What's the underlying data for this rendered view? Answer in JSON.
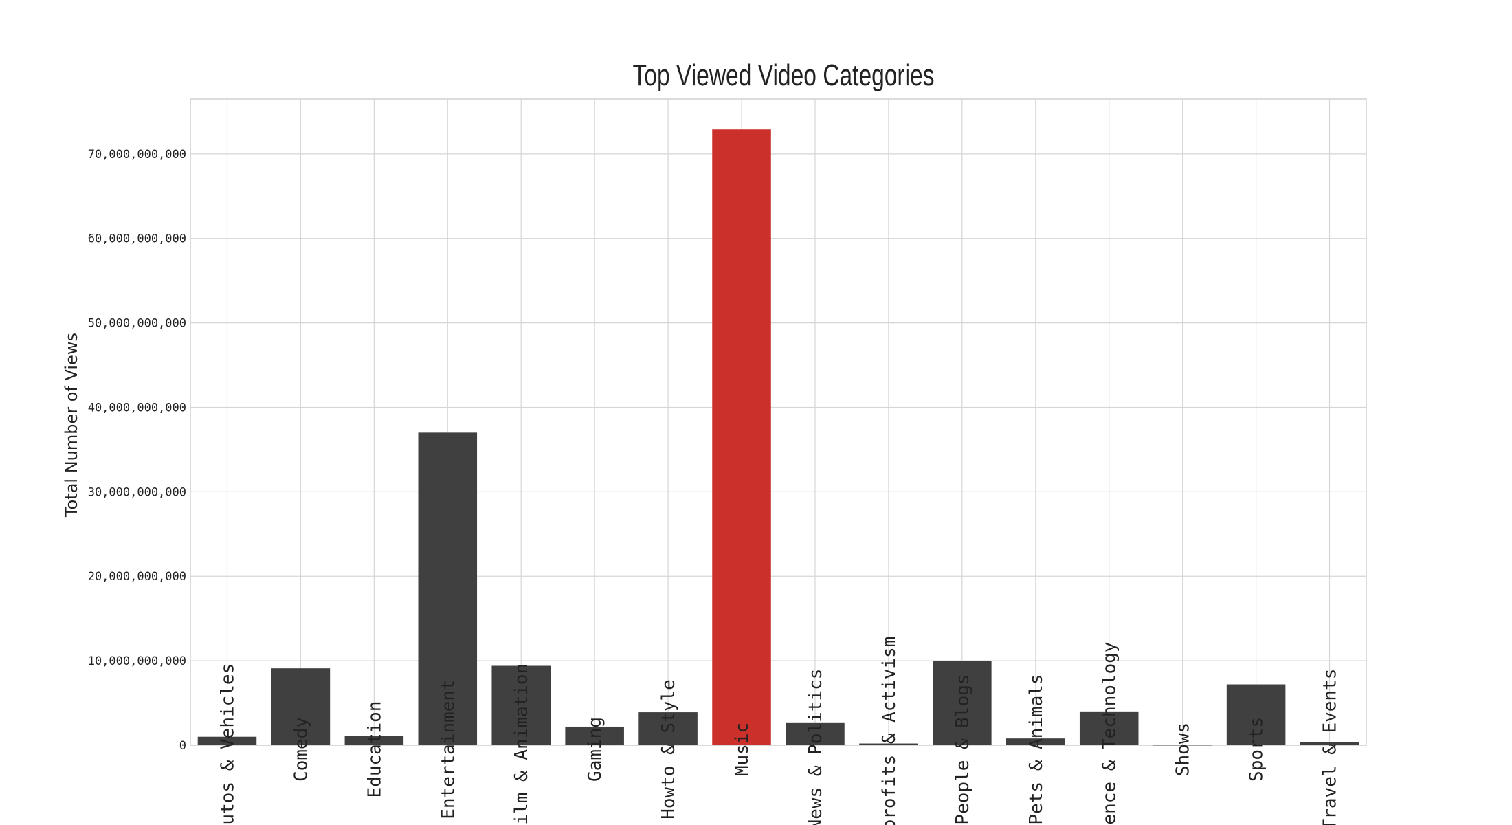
{
  "chart_data": {
    "type": "bar",
    "title": "Top Viewed Video Categories",
    "xlabel": "",
    "ylabel": "Total Number of Views",
    "categories": [
      "Autos & Vehicles",
      "Comedy",
      "Education",
      "Entertainment",
      "Film & Animation",
      "Gaming",
      "Howto & Style",
      "Music",
      "News & Politics",
      "Nonprofits & Activism",
      "People & Blogs",
      "Pets & Animals",
      "Science & Technology",
      "Shows",
      "Sports",
      "Travel & Events"
    ],
    "values": [
      1000000000,
      9100000000,
      1100000000,
      37000000000,
      9400000000,
      2200000000,
      3900000000,
      72900000000,
      2700000000,
      200000000,
      10000000000,
      800000000,
      4000000000,
      50000000,
      7200000000,
      400000000
    ],
    "highlight_category": "Music",
    "ylim": [
      0,
      76500000000
    ],
    "yticks": [
      0,
      10000000000,
      20000000000,
      30000000000,
      40000000000,
      50000000000,
      60000000000,
      70000000000
    ],
    "ytick_labels": [
      "0",
      "10,000,000,000",
      "20,000,000,000",
      "30,000,000,000",
      "40,000,000,000",
      "50,000,000,000",
      "60,000,000,000",
      "70,000,000,000"
    ],
    "grid": true,
    "colors": {
      "bar": "#404040",
      "highlight": "#cb302b",
      "grid": "#d6d6d6",
      "frame": "#d0d0d0"
    }
  }
}
